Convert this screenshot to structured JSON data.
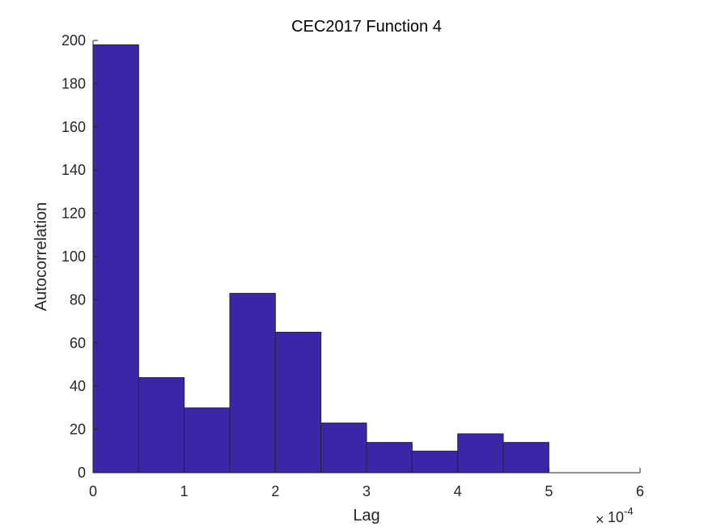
{
  "chart_data": {
    "type": "bar",
    "title": "CEC2017 Function 4",
    "xlabel": "Lag",
    "ylabel": "Autocorrelation",
    "x_multiplier_base": "10",
    "x_multiplier_exponent": "-4",
    "xlim": [
      0,
      6
    ],
    "ylim": [
      0,
      200
    ],
    "xticks": [
      0,
      1,
      2,
      3,
      4,
      5,
      6
    ],
    "yticks": [
      0,
      20,
      40,
      60,
      80,
      100,
      120,
      140,
      160,
      180,
      200
    ],
    "bins": [
      {
        "x0": 0.0,
        "x1": 0.5,
        "value": 198
      },
      {
        "x0": 0.5,
        "x1": 1.0,
        "value": 44
      },
      {
        "x0": 1.0,
        "x1": 1.5,
        "value": 30
      },
      {
        "x0": 1.5,
        "x1": 2.0,
        "value": 83
      },
      {
        "x0": 2.0,
        "x1": 2.5,
        "value": 65
      },
      {
        "x0": 2.5,
        "x1": 3.0,
        "value": 23
      },
      {
        "x0": 3.0,
        "x1": 3.5,
        "value": 14
      },
      {
        "x0": 3.5,
        "x1": 4.0,
        "value": 10
      },
      {
        "x0": 4.0,
        "x1": 4.5,
        "value": 18
      },
      {
        "x0": 4.5,
        "x1": 5.0,
        "value": 14
      }
    ],
    "bar_color": "#3a26a6",
    "edge_color": "#262626",
    "grid": false,
    "legend": "none"
  }
}
